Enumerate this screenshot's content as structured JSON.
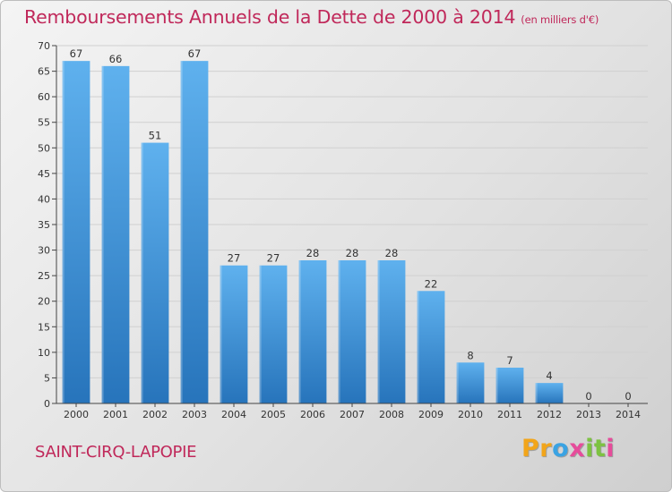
{
  "chart_data": {
    "type": "bar",
    "title": "Remboursements Annuels de la Dette de 2000 à 2014",
    "subtitle": "(en milliers d'€)",
    "categories": [
      "2000",
      "2001",
      "2002",
      "2003",
      "2004",
      "2005",
      "2006",
      "2007",
      "2008",
      "2009",
      "2010",
      "2011",
      "2012",
      "2013",
      "2014"
    ],
    "values": [
      67,
      66,
      51,
      67,
      27,
      27,
      28,
      28,
      28,
      22,
      8,
      7,
      4,
      0,
      0
    ],
    "ylim": [
      0,
      70
    ],
    "yticks": [
      0,
      5,
      10,
      15,
      20,
      25,
      30,
      35,
      40,
      45,
      50,
      55,
      60,
      65,
      70
    ],
    "grid": true,
    "bar_color": "#3a8fd6",
    "bar_color_light": "#5fb1ee",
    "bar_color_dark": "#2774bb"
  },
  "footer": {
    "commune": "SAINT-CIRQ-LAPOPIE",
    "logo_letters": [
      {
        "ch": "P",
        "color": "#f2a51a"
      },
      {
        "ch": "r",
        "color": "#f2a51a"
      },
      {
        "ch": "o",
        "color": "#3aa3e3"
      },
      {
        "ch": "x",
        "color": "#e64c9b"
      },
      {
        "ch": "i",
        "color": "#7dc242"
      },
      {
        "ch": "t",
        "color": "#7dc242"
      },
      {
        "ch": "i",
        "color": "#e64c9b"
      }
    ]
  },
  "colors": {
    "title": "#c0285a",
    "axis": "#444444",
    "grid": "#d0d0d0"
  }
}
